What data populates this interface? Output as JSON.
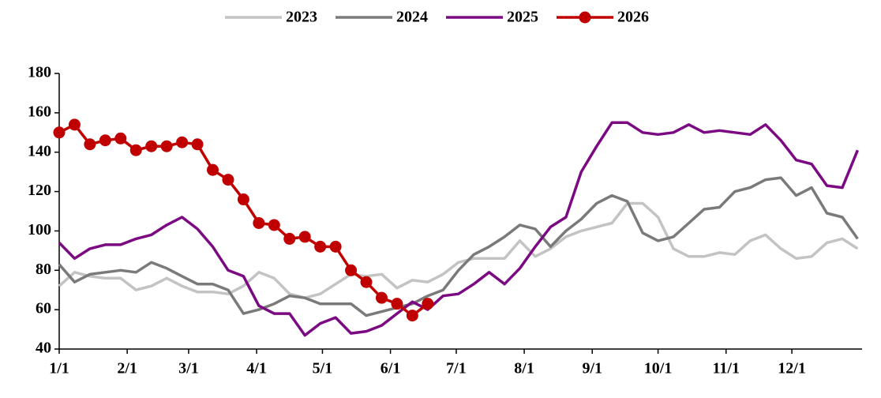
{
  "chart_data": {
    "type": "line",
    "x": [
      0,
      7,
      14,
      21,
      28,
      35,
      42,
      49,
      56,
      63,
      70,
      77,
      84,
      91,
      98,
      105,
      112,
      119,
      126,
      133,
      140,
      147,
      154,
      161,
      168,
      175,
      182,
      189,
      196,
      203,
      210,
      217,
      224,
      231,
      238,
      245,
      252,
      259,
      266,
      273,
      280,
      287,
      294,
      301,
      308,
      315,
      322,
      329,
      336,
      343,
      350,
      357,
      364
    ],
    "xlim": [
      0,
      366
    ],
    "xticks": [
      {
        "value": 0,
        "label": "1/1"
      },
      {
        "value": 31,
        "label": "2/1"
      },
      {
        "value": 59,
        "label": "3/1"
      },
      {
        "value": 90,
        "label": "4/1"
      },
      {
        "value": 120,
        "label": "5/1"
      },
      {
        "value": 151,
        "label": "6/1"
      },
      {
        "value": 181,
        "label": "7/1"
      },
      {
        "value": 212,
        "label": "8/1"
      },
      {
        "value": 243,
        "label": "9/1"
      },
      {
        "value": 273,
        "label": "10/1"
      },
      {
        "value": 304,
        "label": "11/1"
      },
      {
        "value": 334,
        "label": "12/1"
      }
    ],
    "ylim": [
      40,
      180
    ],
    "yticks": [
      40,
      60,
      80,
      100,
      120,
      140,
      160,
      180
    ],
    "legend": "top",
    "series": [
      {
        "name": "2023",
        "color": "#c3c3c3",
        "marker": false,
        "values": [
          72,
          79,
          77,
          76,
          76,
          70,
          72,
          76,
          72,
          69,
          69,
          68,
          72,
          79,
          76,
          68,
          66,
          68,
          73,
          78,
          77,
          78,
          71,
          75,
          74,
          78,
          84,
          86,
          86,
          86,
          95,
          87,
          91,
          97,
          100,
          102,
          104,
          114,
          114,
          107,
          91,
          87,
          87,
          89,
          88,
          95,
          98,
          91,
          86,
          87,
          94,
          96,
          91
        ]
      },
      {
        "name": "2024",
        "color": "#7a7a7a",
        "marker": false,
        "values": [
          83,
          74,
          78,
          79,
          80,
          79,
          84,
          81,
          77,
          73,
          73,
          70,
          58,
          60,
          63,
          67,
          66,
          63,
          63,
          63,
          57,
          59,
          61,
          63,
          67,
          70,
          80,
          88,
          92,
          97,
          103,
          101,
          92,
          100,
          106,
          114,
          118,
          115,
          99,
          95,
          97,
          104,
          111,
          112,
          120,
          122,
          126,
          127,
          118,
          122,
          109,
          107,
          96
        ]
      },
      {
        "name": "2025",
        "color": "#7b0a82",
        "marker": false,
        "values": [
          94,
          86,
          91,
          93,
          93,
          96,
          98,
          103,
          107,
          101,
          92,
          80,
          77,
          62,
          58,
          58,
          47,
          53,
          56,
          48,
          49,
          52,
          58,
          64,
          60,
          67,
          68,
          73,
          79,
          73,
          81,
          92,
          102,
          107,
          130,
          143,
          155,
          155,
          150,
          149,
          150,
          154,
          150,
          151,
          150,
          149,
          154,
          146,
          136,
          134,
          123,
          122,
          141
        ]
      },
      {
        "name": "2026",
        "color": "#c00000",
        "marker": true,
        "values": [
          150,
          154,
          144,
          146,
          147,
          141,
          143,
          143,
          145,
          144,
          131,
          126,
          116,
          104,
          103,
          96,
          97,
          92,
          92,
          80,
          74,
          66,
          63,
          57,
          63,
          null,
          null,
          null,
          null,
          null,
          null,
          null,
          null,
          null,
          null,
          null,
          null,
          null,
          null,
          null,
          null,
          null,
          null,
          null,
          null,
          null,
          null,
          null,
          null,
          null,
          null,
          null,
          null
        ]
      }
    ]
  }
}
